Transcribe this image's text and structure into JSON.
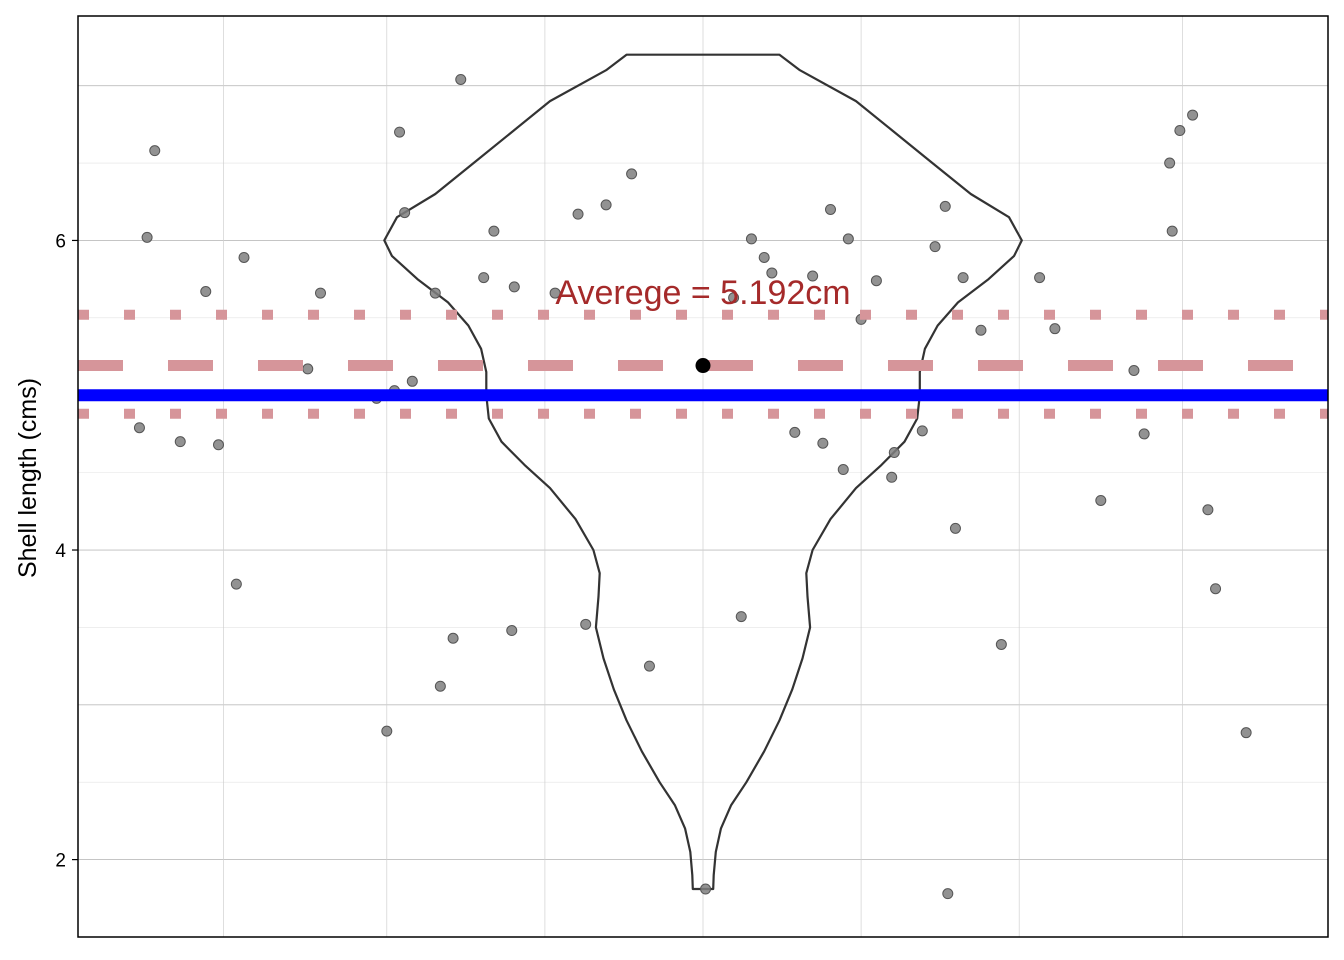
{
  "chart_data": {
    "type": "violin",
    "ylabel": "Shell length (cms)",
    "y_ticks": [
      "2",
      "4",
      "6"
    ],
    "ylim": [
      1.5,
      7.45
    ],
    "grid": true,
    "annotation": "Averege = 5.192cm",
    "mean": 5.192,
    "mean_sd_band": [
      4.88,
      5.52
    ],
    "reference_line": 5.0,
    "colors": {
      "points": "#7f7f7f",
      "violin": "#333333",
      "mean_lines": "#d6959a",
      "reference_line": "#0000ff",
      "annotation": "#a52a2a"
    },
    "violin_profile": [
      {
        "y": 1.81,
        "w": 0.04
      },
      {
        "y": 1.9,
        "w": 0.042
      },
      {
        "y": 2.05,
        "w": 0.05
      },
      {
        "y": 2.2,
        "w": 0.07
      },
      {
        "y": 2.35,
        "w": 0.11
      },
      {
        "y": 2.5,
        "w": 0.17
      },
      {
        "y": 2.7,
        "w": 0.24
      },
      {
        "y": 2.9,
        "w": 0.3
      },
      {
        "y": 3.1,
        "w": 0.35
      },
      {
        "y": 3.3,
        "w": 0.39
      },
      {
        "y": 3.5,
        "w": 0.42
      },
      {
        "y": 3.7,
        "w": 0.41
      },
      {
        "y": 3.85,
        "w": 0.405
      },
      {
        "y": 4.0,
        "w": 0.43
      },
      {
        "y": 4.2,
        "w": 0.5
      },
      {
        "y": 4.4,
        "w": 0.6
      },
      {
        "y": 4.55,
        "w": 0.7
      },
      {
        "y": 4.7,
        "w": 0.79
      },
      {
        "y": 4.85,
        "w": 0.84
      },
      {
        "y": 5.0,
        "w": 0.85
      },
      {
        "y": 5.15,
        "w": 0.85
      },
      {
        "y": 5.3,
        "w": 0.87
      },
      {
        "y": 5.45,
        "w": 0.92
      },
      {
        "y": 5.6,
        "w": 1.0
      },
      {
        "y": 5.75,
        "w": 1.12
      },
      {
        "y": 5.9,
        "w": 1.22
      },
      {
        "y": 6.0,
        "w": 1.25
      },
      {
        "y": 6.15,
        "w": 1.2
      },
      {
        "y": 6.3,
        "w": 1.05
      },
      {
        "y": 6.5,
        "w": 0.9
      },
      {
        "y": 6.7,
        "w": 0.75
      },
      {
        "y": 6.9,
        "w": 0.6
      },
      {
        "y": 7.1,
        "w": 0.38
      },
      {
        "y": 7.2,
        "w": 0.3
      }
    ],
    "points": [
      {
        "x": -1.05,
        "y": 5.66
      },
      {
        "x": -1.03,
        "y": 3.12
      },
      {
        "x": -0.98,
        "y": 3.43
      },
      {
        "x": -0.95,
        "y": 7.04
      },
      {
        "x": -0.82,
        "y": 6.06
      },
      {
        "x": -0.75,
        "y": 3.48
      },
      {
        "x": -0.58,
        "y": 5.66
      },
      {
        "x": -0.49,
        "y": 6.17
      },
      {
        "x": -0.46,
        "y": 3.52
      },
      {
        "x": -0.38,
        "y": 6.23
      },
      {
        "x": -0.33,
        "y": 5.0
      },
      {
        "x": -0.28,
        "y": 6.43
      },
      {
        "x": -0.21,
        "y": 3.25
      },
      {
        "x": 0.15,
        "y": 3.57
      },
      {
        "x": 0.24,
        "y": 5.89
      },
      {
        "x": 0.19,
        "y": 6.01
      },
      {
        "x": 0.27,
        "y": 5.79
      },
      {
        "x": 0.47,
        "y": 4.69
      },
      {
        "x": 0.55,
        "y": 4.52
      },
      {
        "x": 0.68,
        "y": 5.74
      },
      {
        "x": 0.74,
        "y": 4.47
      },
      {
        "x": 0.75,
        "y": 4.63
      },
      {
        "x": 0.95,
        "y": 6.22
      },
      {
        "x": 0.99,
        "y": 4.14
      },
      {
        "x": 1.02,
        "y": 5.76
      },
      {
        "x": 1.09,
        "y": 5.42
      },
      {
        "x": 1.17,
        "y": 3.39
      },
      {
        "x": -2.21,
        "y": 4.79
      },
      {
        "x": -2.18,
        "y": 6.02
      },
      {
        "x": -2.15,
        "y": 6.58
      },
      {
        "x": -2.05,
        "y": 4.7
      },
      {
        "x": -1.95,
        "y": 5.67
      },
      {
        "x": -1.9,
        "y": 4.68
      },
      {
        "x": -1.8,
        "y": 5.89
      },
      {
        "x": -1.83,
        "y": 3.78
      },
      {
        "x": -1.55,
        "y": 5.17
      },
      {
        "x": -1.5,
        "y": 5.66
      },
      {
        "x": -1.28,
        "y": 4.98
      },
      {
        "x": -1.24,
        "y": 2.83
      },
      {
        "x": -1.21,
        "y": 5.03
      },
      {
        "x": -1.19,
        "y": 6.7
      },
      {
        "x": -1.17,
        "y": 6.18
      },
      {
        "x": -1.14,
        "y": 5.09
      },
      {
        "x": -0.86,
        "y": 5.76
      },
      {
        "x": -0.74,
        "y": 5.7
      },
      {
        "x": 0.12,
        "y": 5.63
      },
      {
        "x": 0.36,
        "y": 4.76
      },
      {
        "x": 0.43,
        "y": 5.77
      },
      {
        "x": 0.5,
        "y": 6.2
      },
      {
        "x": 0.57,
        "y": 6.01
      },
      {
        "x": 0.62,
        "y": 5.49
      },
      {
        "x": 0.86,
        "y": 4.77
      },
      {
        "x": 0.91,
        "y": 5.96
      },
      {
        "x": 1.32,
        "y": 5.76
      },
      {
        "x": 1.38,
        "y": 5.43
      },
      {
        "x": 1.56,
        "y": 4.32
      },
      {
        "x": 1.69,
        "y": 5.16
      },
      {
        "x": 1.73,
        "y": 4.75
      },
      {
        "x": 1.83,
        "y": 6.5
      },
      {
        "x": 1.84,
        "y": 6.06
      },
      {
        "x": 1.87,
        "y": 6.71
      },
      {
        "x": 1.92,
        "y": 6.81
      },
      {
        "x": 1.98,
        "y": 4.26
      },
      {
        "x": 2.01,
        "y": 3.75
      },
      {
        "x": 2.13,
        "y": 2.82
      },
      {
        "x": 0.01,
        "y": 1.81
      },
      {
        "x": 0.96,
        "y": 1.78
      }
    ]
  }
}
